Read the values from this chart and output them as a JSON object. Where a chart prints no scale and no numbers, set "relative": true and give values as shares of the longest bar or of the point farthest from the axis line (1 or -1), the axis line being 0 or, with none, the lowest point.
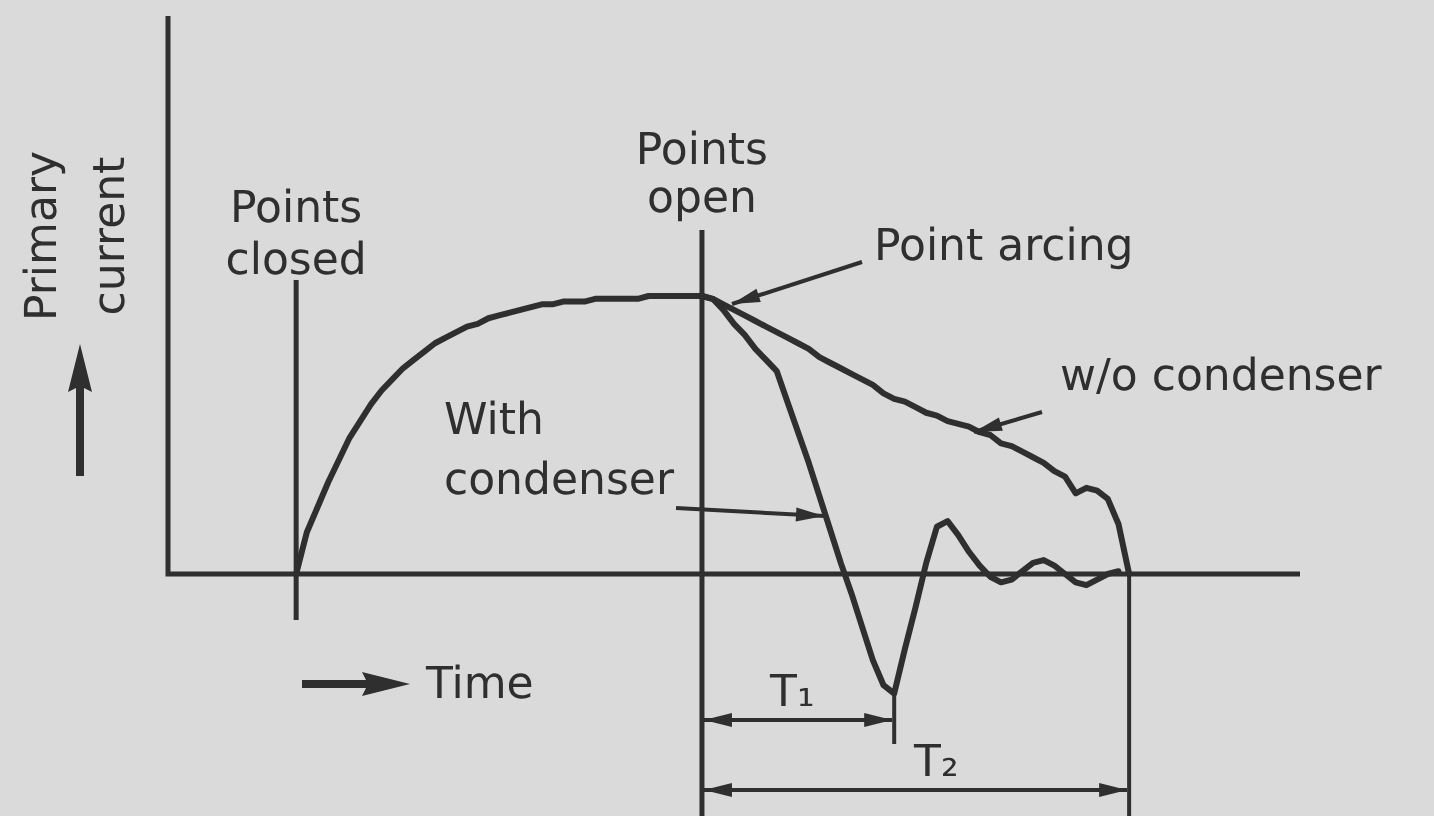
{
  "chart_data": {
    "type": "line",
    "relative": true,
    "xlabel": "Time",
    "ylabel": "Primary current",
    "legend": false,
    "marker": "none",
    "categories": [
      null,
      null,
      null,
      null,
      null,
      null,
      null,
      null,
      null,
      null,
      null,
      null,
      null,
      null,
      null,
      null,
      null,
      null,
      null,
      null,
      null,
      null,
      null,
      null,
      null,
      null,
      null,
      null,
      null,
      null,
      null,
      null,
      null,
      null,
      null,
      null,
      null,
      null,
      null,
      null,
      null,
      null,
      null,
      null,
      null,
      null,
      null,
      null,
      null,
      null,
      null,
      null,
      null,
      null,
      null,
      null,
      null,
      null,
      null,
      null,
      null,
      null,
      null,
      null,
      null,
      null,
      null,
      null,
      null,
      null,
      null,
      null,
      null,
      null,
      null,
      null,
      null,
      null,
      null,
      null,
      null,
      null,
      null,
      null,
      null,
      null,
      null,
      null,
      null,
      null,
      null,
      null,
      null,
      null,
      null,
      null,
      null,
      null,
      null,
      null,
      null,
      null,
      null,
      null,
      null,
      null,
      null
    ],
    "series": [
      {
        "name": "With condenser",
        "color": "#2f2f2f",
        "values": [
          null,
          null,
          null,
          null,
          null,
          null,
          null,
          null,
          null,
          null,
          null,
          null,
          0,
          0.15,
          0.24,
          0.33,
          0.41,
          0.49,
          0.55,
          0.61,
          0.66,
          0.7,
          0.74,
          0.77,
          0.8,
          0.83,
          0.85,
          0.87,
          0.89,
          0.9,
          0.92,
          0.93,
          0.94,
          0.95,
          0.96,
          0.97,
          0.97,
          0.98,
          0.98,
          0.98,
          0.99,
          0.99,
          0.99,
          0.99,
          0.99,
          1,
          1,
          1,
          1,
          1,
          1,
          0.99,
          0.95,
          0.9,
          0.86,
          0.81,
          0.77,
          0.73,
          0.62,
          0.51,
          0.4,
          0.28,
          0.16,
          0.04,
          -0.07,
          -0.19,
          -0.31,
          -0.4,
          -0.43,
          -0.27,
          -0.12,
          0.04,
          0.17,
          0.19,
          0.14,
          0.08,
          0.03,
          -0.01,
          -0.03,
          -0.02,
          0.01,
          0.04,
          0.05,
          0.03,
          0,
          -0.03,
          -0.04,
          -0.02,
          0,
          0.01,
          null,
          null,
          null,
          null,
          null,
          null,
          null,
          null,
          null,
          null,
          null,
          null,
          null,
          null,
          null,
          null,
          null
        ]
      },
      {
        "name": "w/o condenser",
        "color": "#2f2f2f",
        "values": [
          null,
          null,
          null,
          null,
          null,
          null,
          null,
          null,
          null,
          null,
          null,
          null,
          null,
          null,
          null,
          null,
          null,
          null,
          null,
          null,
          null,
          null,
          null,
          null,
          null,
          null,
          null,
          null,
          null,
          null,
          null,
          null,
          null,
          null,
          null,
          null,
          null,
          null,
          null,
          null,
          null,
          null,
          null,
          null,
          null,
          null,
          null,
          null,
          null,
          null,
          1,
          0.99,
          0.97,
          0.95,
          0.93,
          0.91,
          0.89,
          0.87,
          0.85,
          0.83,
          0.81,
          0.78,
          0.76,
          0.74,
          0.72,
          0.7,
          0.68,
          0.65,
          0.63,
          0.62,
          0.6,
          0.58,
          0.57,
          0.55,
          0.54,
          0.53,
          0.51,
          0.5,
          0.47,
          0.46,
          0.44,
          0.42,
          0.4,
          0.37,
          0.35,
          0.29,
          0.31,
          0.3,
          0.27,
          0.18,
          0,
          null,
          null,
          null,
          null,
          null,
          null,
          null,
          null,
          null,
          null,
          null,
          null,
          null,
          null,
          null,
          null
        ]
      }
    ],
    "annotations": [
      "Points closed",
      "Points open",
      "Point arcing",
      "T₁",
      "T₂"
    ]
  }
}
